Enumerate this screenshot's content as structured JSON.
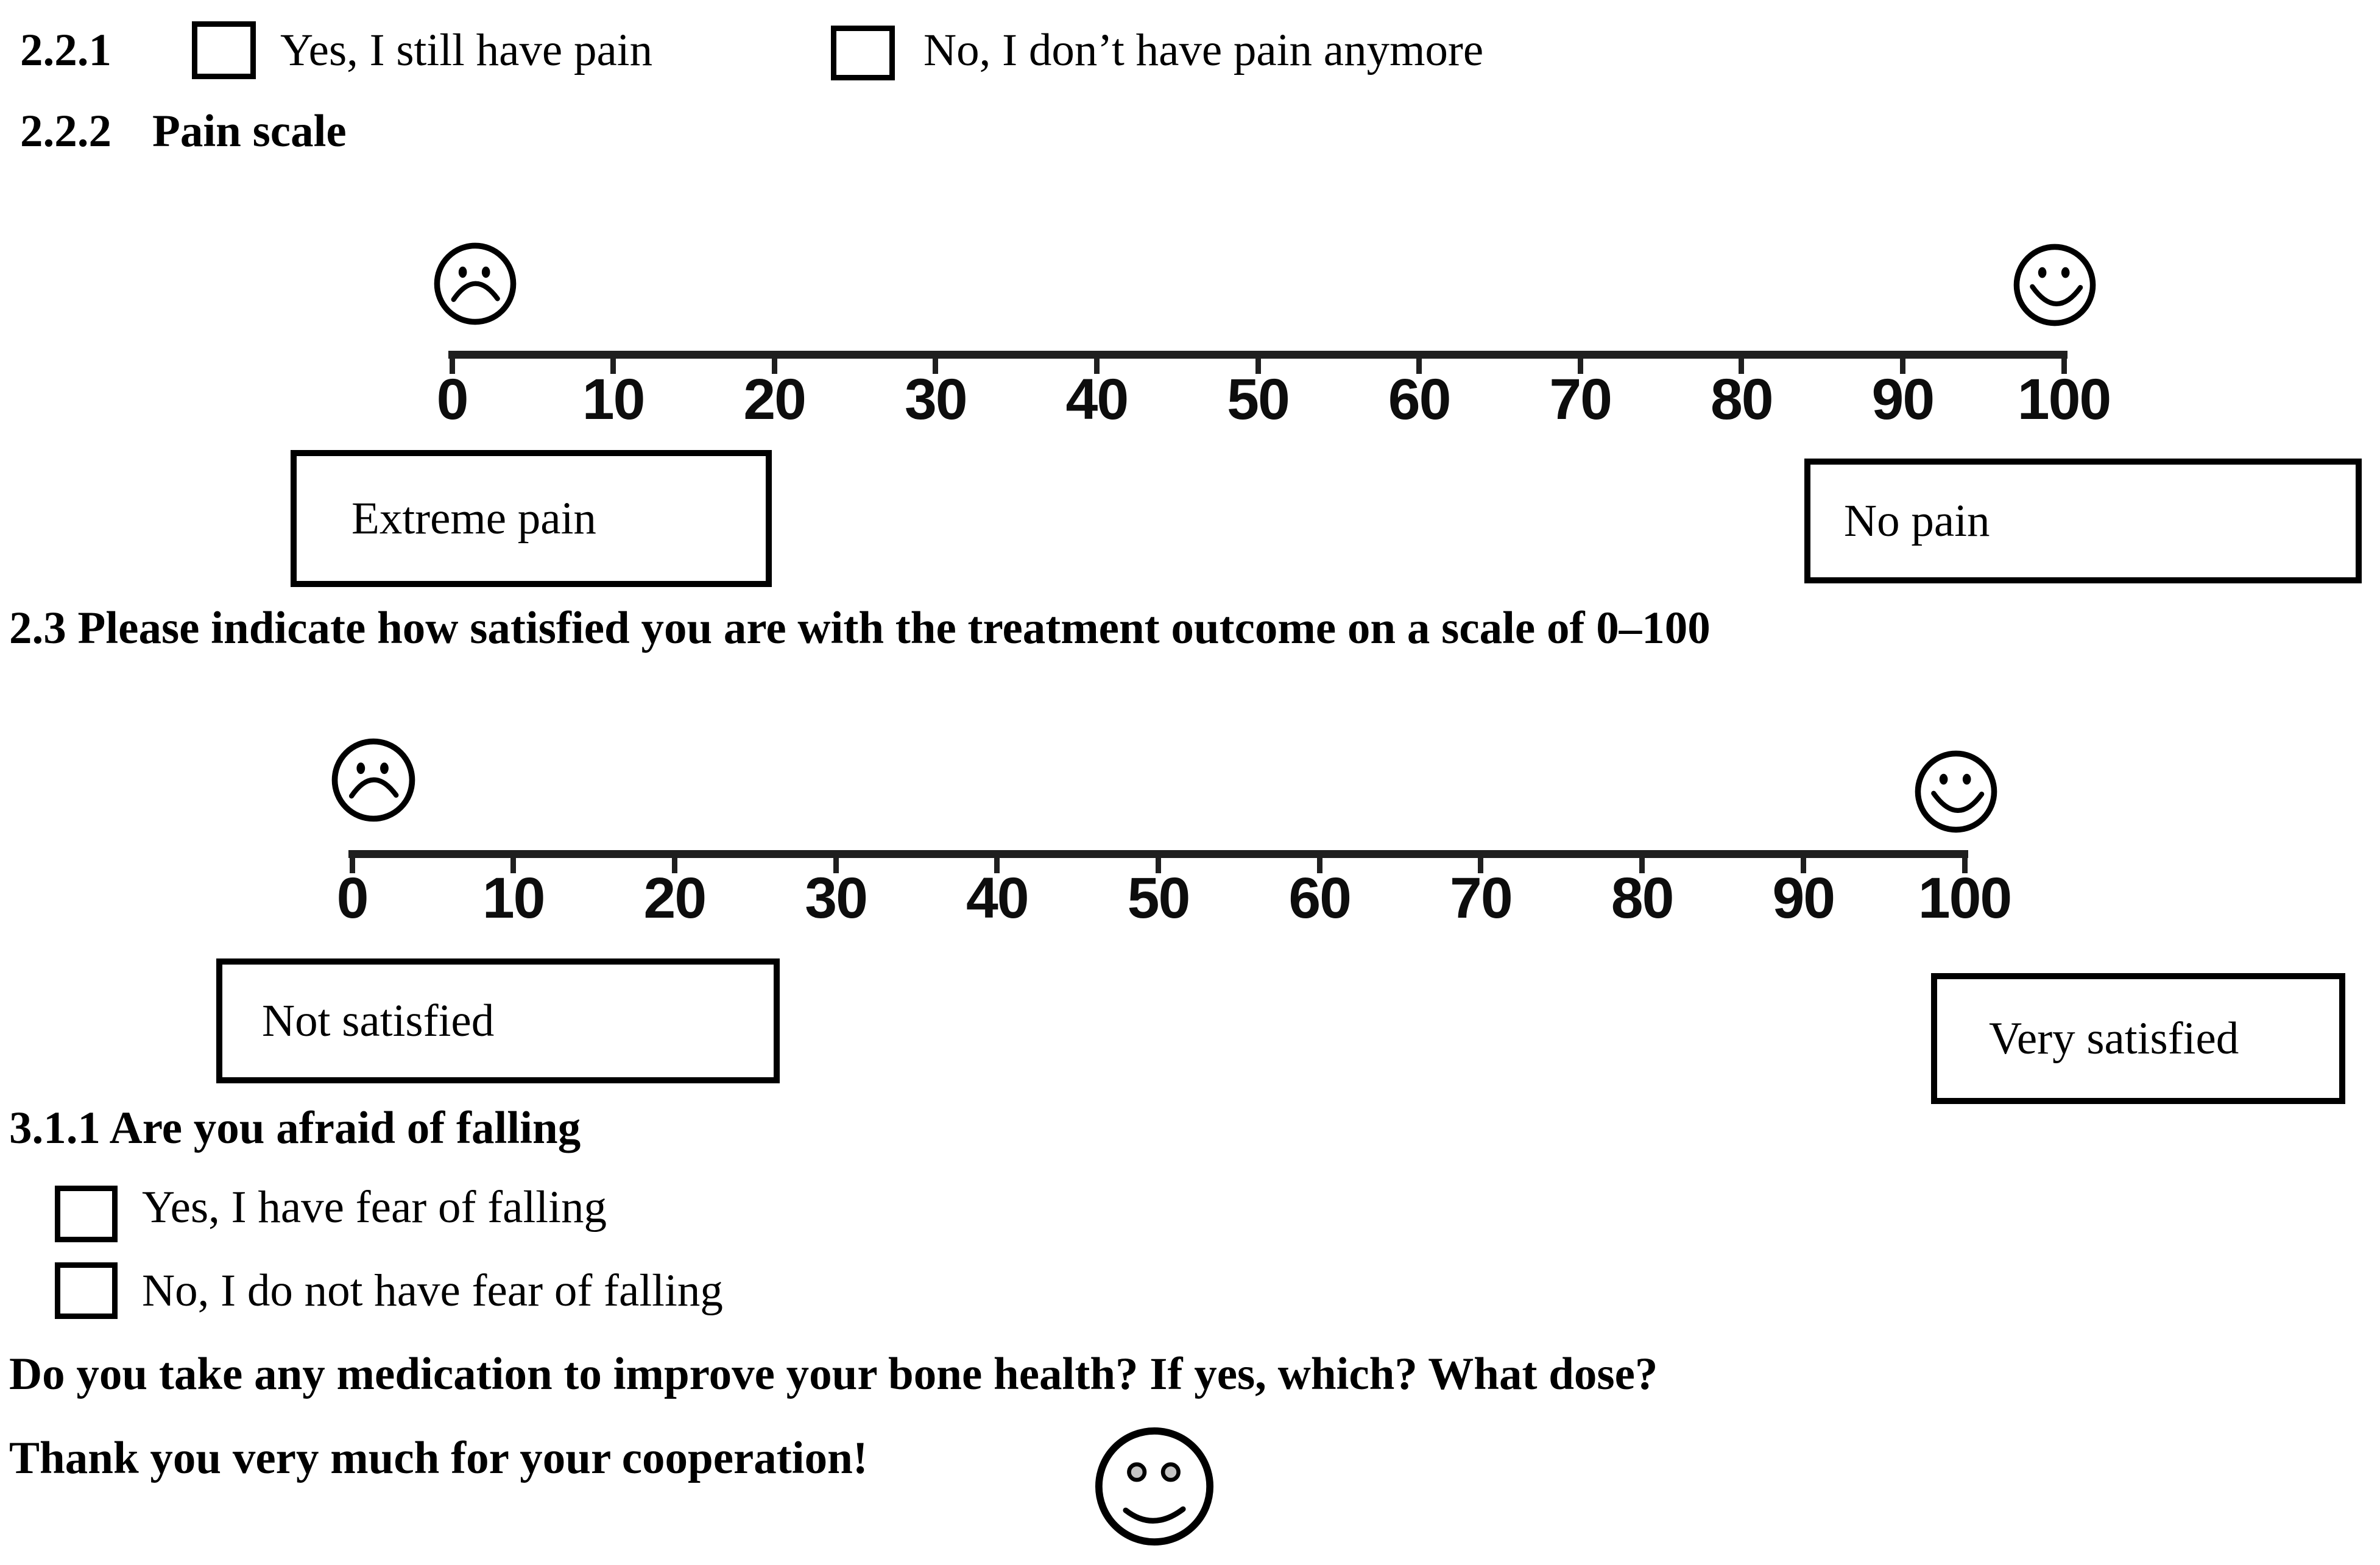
{
  "colors": {
    "background": "#ffffff",
    "ink": "#000000",
    "scale_line": "#1f1f1f",
    "smiley_eye_fill": "#c4c4c4"
  },
  "q_2_2_1": {
    "number": "2.2.1",
    "options": [
      {
        "label": "Yes, I still have pain",
        "checked": false
      },
      {
        "label": "No, I don’t have pain anymore",
        "checked": false
      }
    ]
  },
  "q_2_2_2": {
    "number": "2.2.2",
    "title": "Pain scale"
  },
  "pain_scale": {
    "type": "visual-analog-scale",
    "min": 0,
    "max": 100,
    "tick_labels": [
      "0",
      "10",
      "20",
      "30",
      "40",
      "50",
      "60",
      "70",
      "80",
      "90",
      "100"
    ],
    "left_icon": "sad-face",
    "right_icon": "happy-face",
    "left_box_label": "Extreme pain",
    "right_box_label": "No pain"
  },
  "q_2_3": {
    "title": "2.3 Please indicate how satisfied you are with the treatment outcome on a scale of 0–100"
  },
  "satisfaction_scale": {
    "type": "visual-analog-scale",
    "min": 0,
    "max": 100,
    "tick_labels": [
      "0",
      "10",
      "20",
      "30",
      "40",
      "50",
      "60",
      "70",
      "80",
      "90",
      "100"
    ],
    "left_icon": "sad-face",
    "right_icon": "happy-face",
    "left_box_label": "Not satisfied",
    "right_box_label": "Very satisfied"
  },
  "q_3_1_1": {
    "title": "3.1.1 Are you afraid of falling",
    "options": [
      {
        "label": "Yes, I have fear of falling",
        "checked": false
      },
      {
        "label": "No, I do not have fear of falling",
        "checked": false
      }
    ]
  },
  "medication_question": "Do you take any medication to improve your bone health? If yes, which? What dose?",
  "closing_message": "Thank you very much for your cooperation!",
  "closing_icon": "smiley-face"
}
